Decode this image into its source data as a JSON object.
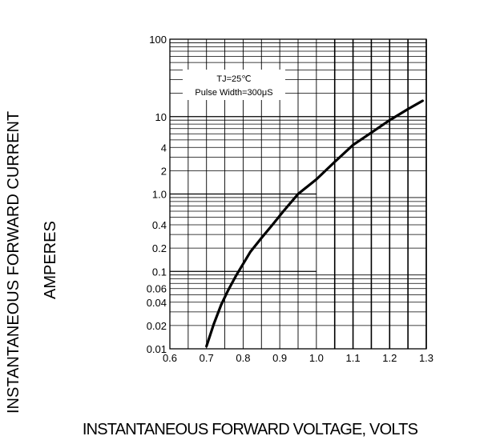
{
  "chart_data": {
    "type": "line",
    "scale_y": "log",
    "grid": true,
    "xlim": [
      0.6,
      1.3
    ],
    "ylim": [
      0.01,
      100
    ],
    "xlabel": "INSTANTANEOUS FORWARD VOLTAGE, VOLTS",
    "ylabel_line1": "INSTANTANEOUS FORWARD CURRENT",
    "ylabel_line2": "AMPERES",
    "x_ticks": [
      "0.6",
      "0.7",
      "0.8",
      "0.9",
      "1.0",
      "1.1",
      "1.2",
      "1.3"
    ],
    "x_tick_values": [
      0.6,
      0.7,
      0.8,
      0.9,
      1.0,
      1.1,
      1.2,
      1.3
    ],
    "y_ticks": [
      "0.01",
      "0.02",
      "0.04",
      "0.06",
      "0.1",
      "0.2",
      "0.4",
      "1.0",
      "2",
      "4",
      "10",
      "100"
    ],
    "y_tick_values": [
      0.01,
      0.02,
      0.04,
      0.06,
      0.1,
      0.2,
      0.4,
      1.0,
      2,
      4,
      10,
      100
    ],
    "annotation_line1": "TJ=25℃",
    "annotation_line2": "Pulse Width=300μS",
    "series": [
      {
        "x": [
          0.7,
          0.72,
          0.74,
          0.76,
          0.78,
          0.8,
          0.82,
          0.85,
          0.88,
          0.91,
          0.95,
          1.0,
          1.05,
          1.1,
          1.15,
          1.2,
          1.25,
          1.29
        ],
        "y": [
          0.0108,
          0.021,
          0.037,
          0.058,
          0.087,
          0.125,
          0.18,
          0.27,
          0.4,
          0.6,
          1.0,
          1.55,
          2.6,
          4.3,
          6.2,
          9.0,
          12.5,
          16.0
        ]
      }
    ]
  }
}
